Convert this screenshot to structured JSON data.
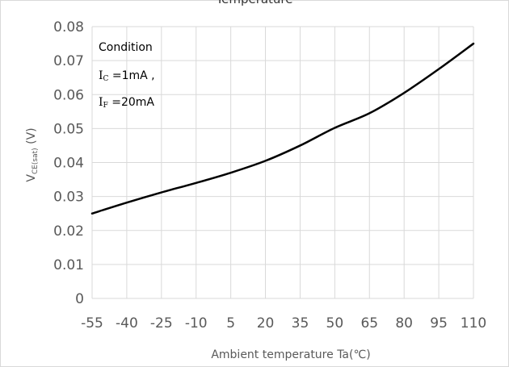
{
  "chart_data": {
    "type": "line",
    "title": "Temperature",
    "xlabel": "Ambient temperature Ta(℃)",
    "ylabel": "V",
    "ylabel_sub": "CE(sat)",
    "ylabel_unit": " (V)",
    "xlim": [
      -55,
      110
    ],
    "ylim": [
      0,
      0.08
    ],
    "x_ticks": [
      "-55",
      "-40",
      "-25",
      "-10",
      "5",
      "20",
      "35",
      "50",
      "65",
      "80",
      "95",
      "110"
    ],
    "y_ticks": [
      "0",
      "0.01",
      "0.02",
      "0.03",
      "0.04",
      "0.05",
      "0.06",
      "0.07",
      "0.08"
    ],
    "grid": "vertical and horizontal",
    "annotation": {
      "line1": "Condition",
      "line2_sym": "I",
      "line2_sub": "C",
      "line2_rest": " =1mA ,",
      "line3_sym": "I",
      "line3_sub": "F",
      "line3_rest": " =20mA"
    },
    "series": [
      {
        "color": "#000000",
        "x": [
          -55,
          -40,
          -25,
          -10,
          5,
          20,
          35,
          50,
          65,
          80,
          95,
          110
        ],
        "y": [
          0.025,
          0.0282,
          0.0312,
          0.034,
          0.037,
          0.0405,
          0.045,
          0.0502,
          0.0545,
          0.0605,
          0.0675,
          0.075
        ]
      }
    ]
  }
}
